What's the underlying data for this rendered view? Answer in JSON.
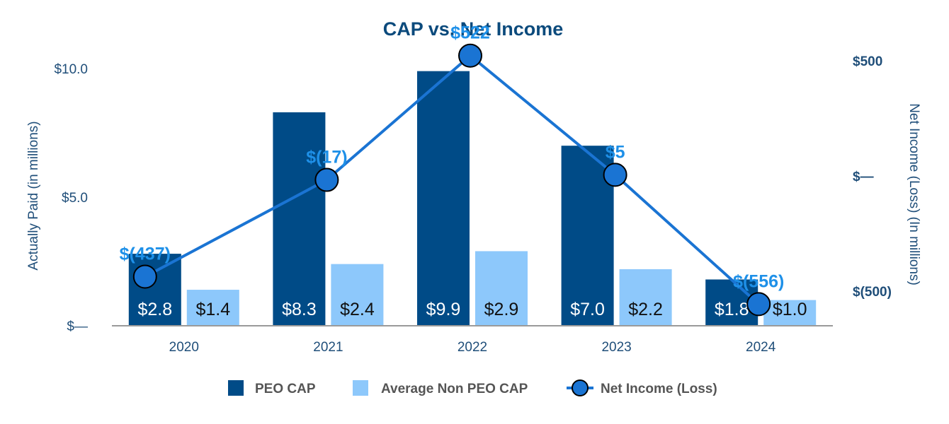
{
  "chart_data": {
    "type": "bar",
    "title": "CAP vs. Net Income",
    "categories": [
      "2020",
      "2021",
      "2022",
      "2023",
      "2024"
    ],
    "series": [
      {
        "name": "PEO CAP",
        "color": "#004b87",
        "values": [
          2.8,
          8.3,
          9.9,
          7.0,
          1.8
        ],
        "labels": [
          "$2.8",
          "$8.3",
          "$9.9",
          "$7.0",
          "$1.8"
        ]
      },
      {
        "name": "Average Non PEO CAP",
        "color": "#8dc8fb",
        "values": [
          1.4,
          2.4,
          2.9,
          2.2,
          1.0
        ],
        "labels": [
          "$1.4",
          "$2.4",
          "$2.9",
          "$2.2",
          "$1.0"
        ]
      },
      {
        "name": "Net Income (Loss)",
        "type": "line",
        "axis": "right",
        "color": "#1a74d3",
        "values": [
          -437,
          -17,
          522,
          5,
          -556
        ],
        "labels": [
          "$(437)",
          "$(17)",
          "$522",
          "$5",
          "$(556)"
        ]
      }
    ],
    "left_axis": {
      "label": "Actually Paid (in millions)",
      "range": [
        0,
        10
      ],
      "ticks": [
        0,
        5,
        10
      ],
      "tick_labels": [
        "$—",
        "$5.0",
        "$10.0"
      ]
    },
    "right_axis": {
      "label": "Net Income (Loss) (In millions)",
      "range": [
        -650,
        650
      ],
      "ticks": [
        500,
        0,
        -500
      ],
      "tick_labels": [
        "$500",
        "$—",
        "$(500)"
      ]
    },
    "grid": false,
    "legend_position": "bottom-center"
  }
}
